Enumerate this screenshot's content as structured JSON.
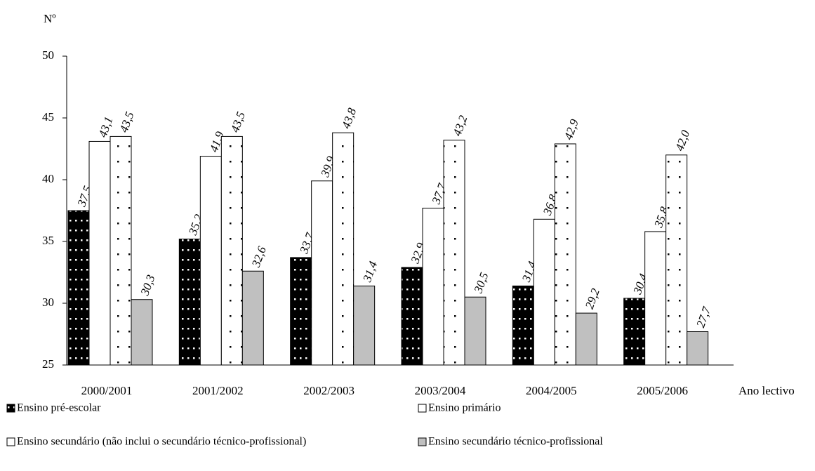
{
  "chart_data": {
    "type": "bar",
    "y_label": "Nº",
    "x_label": "Ano lectivo",
    "categories": [
      "2000/2001",
      "2001/2002",
      "2002/2003",
      "2003/2004",
      "2004/2005",
      "2005/2006"
    ],
    "series": [
      {
        "name": "Ensino pré-escolar",
        "color": "#000000",
        "pattern": "dots",
        "values": [
          37.5,
          35.2,
          33.7,
          32.9,
          31.4,
          30.4
        ],
        "value_labels": [
          "37,5",
          "35,2",
          "33,7",
          "32,9",
          "31,4",
          "30,4"
        ]
      },
      {
        "name": "Ensino primário",
        "color": "#ffffff",
        "values": [
          43.1,
          41.9,
          39.9,
          37.7,
          36.8,
          35.8
        ],
        "value_labels": [
          "43,1",
          "41,9",
          "39,9",
          "37,7",
          "36,8",
          "35,8"
        ]
      },
      {
        "name": "Ensino secundário (não inclui o secundário técnico-profissional)",
        "color": "#ffffff",
        "pattern": "dots",
        "values": [
          43.5,
          43.5,
          43.8,
          43.2,
          42.9,
          42.0
        ],
        "value_labels": [
          "43,5",
          "43,5",
          "43,8",
          "43,2",
          "42,9",
          "42,0"
        ]
      },
      {
        "name": "Ensino secundário técnico-profissional",
        "color": "#c0c0c0",
        "values": [
          30.3,
          32.6,
          31.4,
          30.5,
          29.2,
          27.7
        ],
        "value_labels": [
          "30,3",
          "32,6",
          "31,4",
          "30,5",
          "29,2",
          "27,7"
        ]
      }
    ],
    "ylim": [
      25,
      50
    ],
    "yticks": [
      25,
      30,
      35,
      40,
      45,
      50
    ],
    "grid": false
  }
}
